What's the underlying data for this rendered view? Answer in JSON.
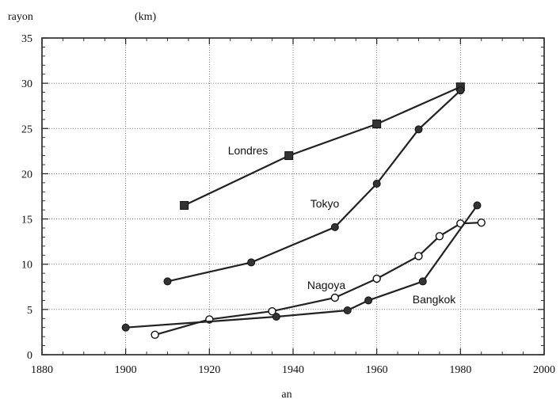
{
  "chart_data": {
    "type": "line",
    "ylabel_left": "rayon",
    "ylabel_unit": "(km)",
    "xlabel": "an",
    "xlim": [
      1880,
      2000
    ],
    "ylim": [
      0,
      35
    ],
    "x_ticks": [
      "1880",
      "1900",
      "1920",
      "1940",
      "1960",
      "1980",
      "2000"
    ],
    "y_ticks": [
      "0",
      "5",
      "10",
      "15",
      "20",
      "25",
      "30",
      "35"
    ],
    "grid": "dotted",
    "series": [
      {
        "name": "Londres",
        "marker": "square",
        "x": [
          1914,
          1939,
          1960,
          1980
        ],
        "y": [
          16.5,
          22,
          25.5,
          29.6
        ]
      },
      {
        "name": "Tokyo",
        "marker": "filled-circle",
        "x": [
          1910,
          1930,
          1950,
          1960,
          1970,
          1980
        ],
        "y": [
          8.1,
          10.2,
          14.1,
          18.9,
          24.9,
          29.2
        ]
      },
      {
        "name": "Nagoya",
        "marker": "open-circle",
        "x": [
          1907,
          1920,
          1935,
          1950,
          1960,
          1970,
          1975,
          1980,
          1985
        ],
        "y": [
          2.2,
          3.9,
          4.8,
          6.3,
          8.4,
          10.9,
          13.1,
          14.5,
          14.6
        ]
      },
      {
        "name": "Bangkok",
        "marker": "filled-circle",
        "x": [
          1900,
          1936,
          1953,
          1958,
          1971,
          1984
        ],
        "y": [
          3.0,
          4.2,
          4.9,
          6.0,
          8.1,
          16.5
        ]
      }
    ]
  }
}
